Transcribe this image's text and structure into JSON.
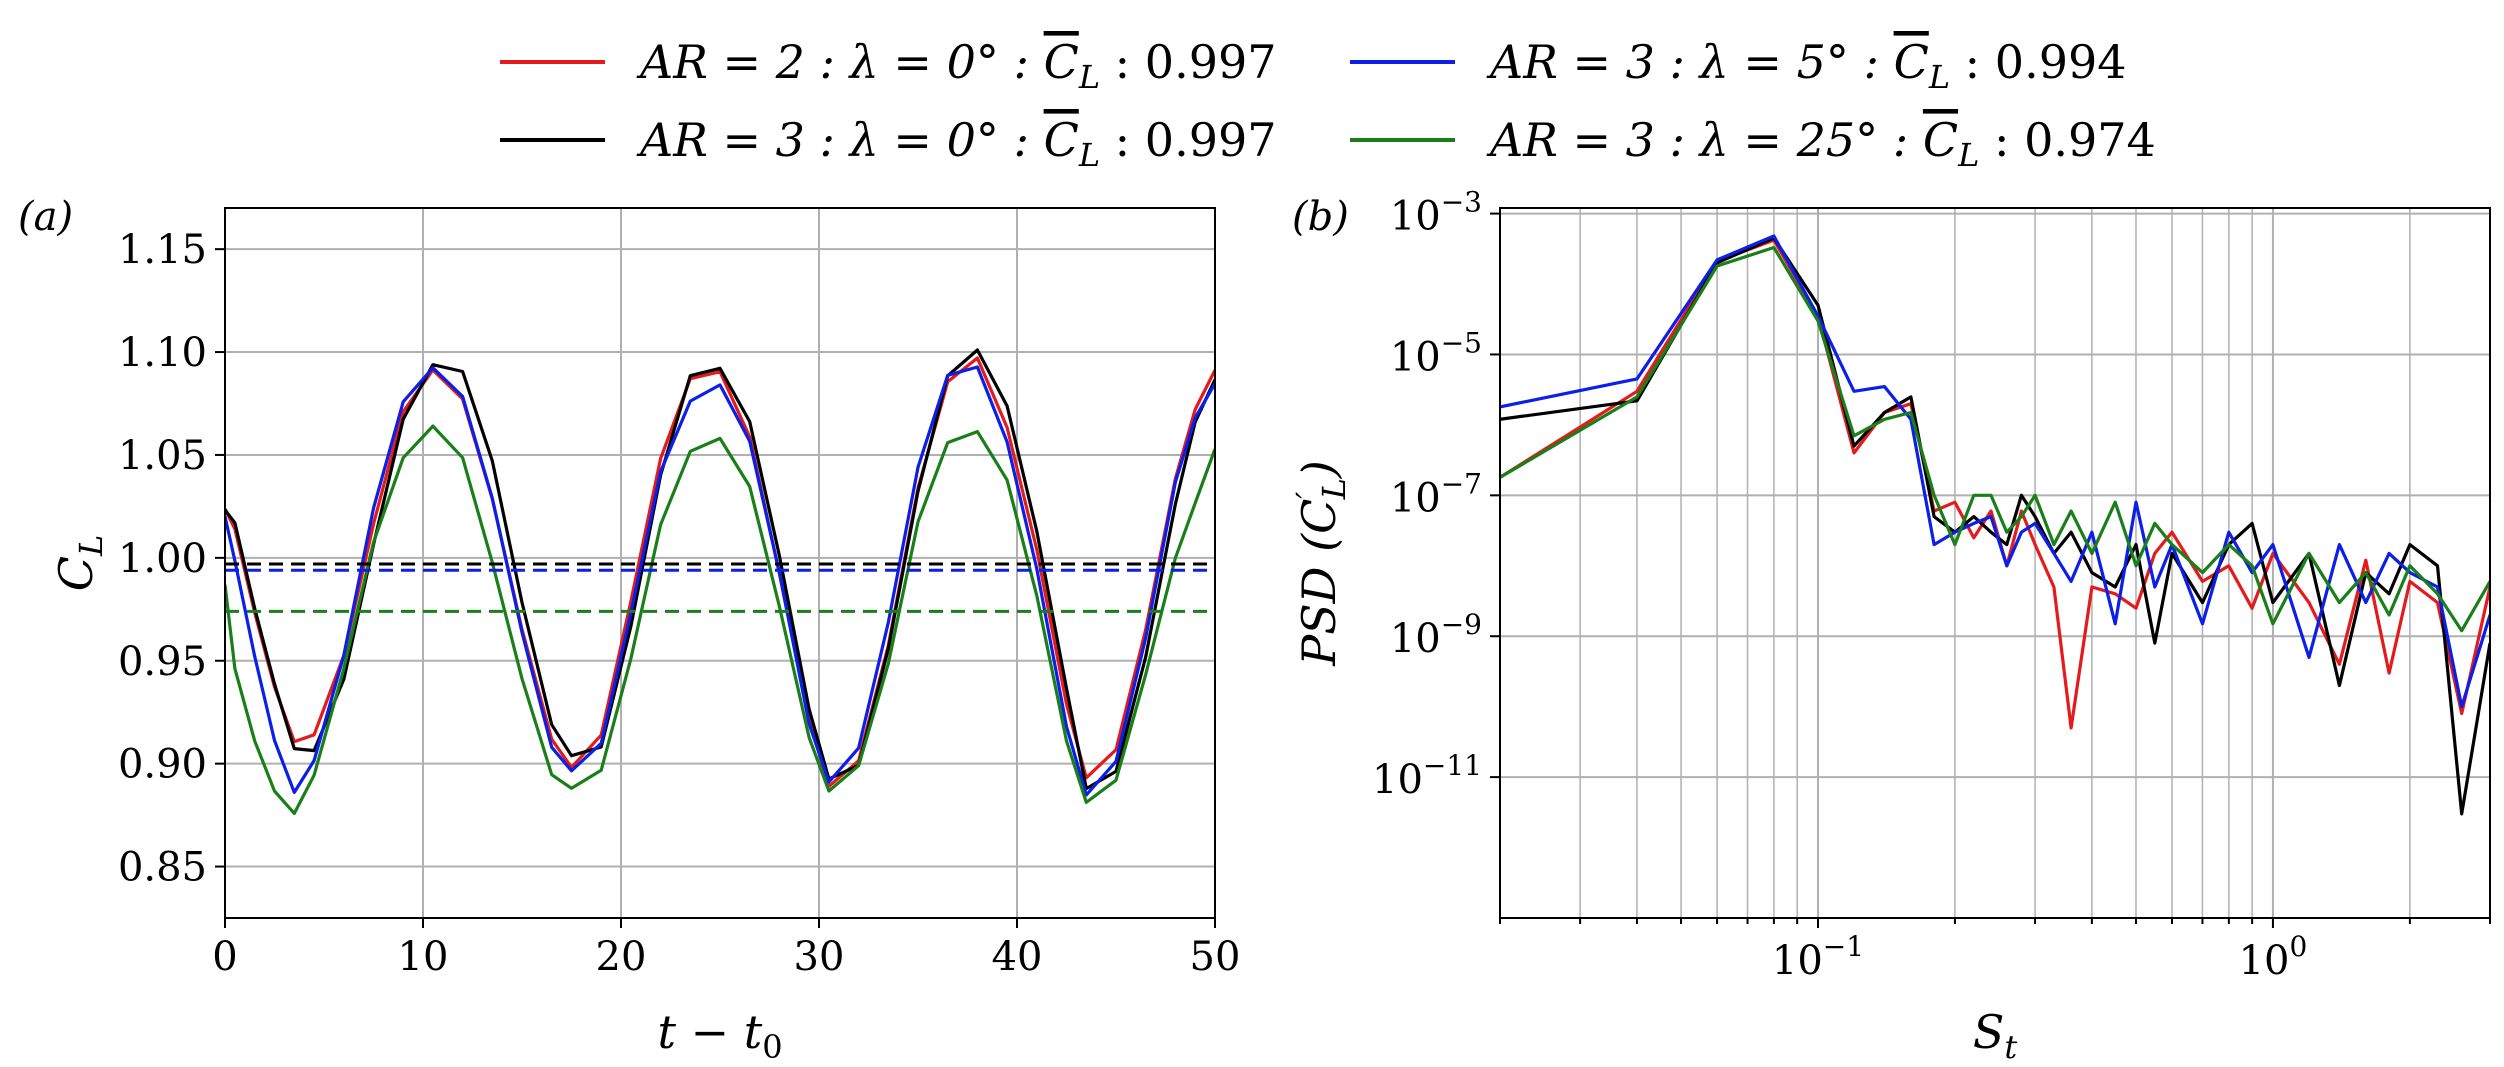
{
  "legend": {
    "placement": "top-center",
    "entries": [
      {
        "prefix": "AR = 2 : λ = 0° : ",
        "cl_symbol": "C",
        "cl_sub": "L",
        "suffix": " : 0.997",
        "color": "#e41a1c"
      },
      {
        "prefix": "AR = 3 : λ = 5° : ",
        "cl_symbol": "C",
        "cl_sub": "L",
        "suffix": " : 0.994",
        "color": "#0b1fe8"
      },
      {
        "prefix": "AR = 3 : λ = 0° : ",
        "cl_symbol": "C",
        "cl_sub": "L",
        "suffix": " : 0.997",
        "color": "#000000"
      },
      {
        "prefix": "AR = 3 : λ = 25° : ",
        "cl_symbol": "C",
        "cl_sub": "L",
        "suffix": " : 0.974",
        "color": "#1a7f1a"
      }
    ]
  },
  "panels": {
    "a": {
      "label": "(a)",
      "xlabel": "t − t",
      "xlabel_sub": "0",
      "ylabel": "C",
      "ylabel_sub": "L"
    },
    "b": {
      "label": "(b)",
      "xlabel": "S",
      "xlabel_sub": "t",
      "ylabel": "PSD (C",
      "ylabel_sup": "′",
      "ylabel_sub": "L",
      "ylabel_end": ")"
    }
  },
  "colors": {
    "red": "#e41a1c",
    "black": "#000000",
    "blue": "#0b1fe8",
    "green": "#1a7f1a",
    "grid": "#b0b0b0"
  },
  "chart_data": [
    {
      "type": "line",
      "panel": "a",
      "xlabel": "t − t0",
      "ylabel": "CL",
      "xlim": [
        0,
        50
      ],
      "ylim": [
        0.825,
        1.17
      ],
      "xticks": [
        0,
        10,
        20,
        30,
        40,
        50
      ],
      "xtick_labels": [
        "0",
        "10",
        "20",
        "30",
        "40",
        "50"
      ],
      "yticks": [
        0.85,
        0.9,
        0.95,
        1.0,
        1.05,
        1.1,
        1.15
      ],
      "ytick_labels": [
        "0.85",
        "0.90",
        "0.95",
        "1.00",
        "1.05",
        "1.10",
        "1.15"
      ],
      "grid": true,
      "series": [
        {
          "color": "#e41a1c",
          "mean": 0.997,
          "x": [
            0,
            0.5,
            1.5,
            2.5,
            3.5,
            4.5,
            6,
            7.5,
            9,
            10.5,
            12,
            13.5,
            15,
            16.5,
            17.5,
            19,
            20.5,
            22,
            23.5,
            25,
            26.5,
            28,
            29.5,
            30.5,
            32,
            33.5,
            35,
            36.5,
            38,
            39.5,
            41,
            42.5,
            43.5,
            45,
            46.5,
            48,
            49,
            50
          ],
          "y": [
            1.02,
            1.01,
            0.97,
            0.935,
            0.91,
            0.915,
            0.955,
            1.02,
            1.075,
            1.095,
            1.08,
            1.03,
            0.965,
            0.91,
            0.895,
            0.91,
            0.975,
            1.045,
            1.085,
            1.09,
            1.06,
            0.995,
            0.925,
            0.893,
            0.905,
            0.96,
            1.035,
            1.085,
            1.095,
            1.06,
            1.0,
            0.925,
            0.89,
            0.905,
            0.965,
            1.04,
            1.075,
            1.095
          ]
        },
        {
          "color": "#000000",
          "mean": 0.997,
          "x": [
            0,
            0.5,
            1.5,
            2.5,
            3.5,
            4.5,
            6,
            7.5,
            9,
            10.5,
            12,
            13.5,
            15,
            16.5,
            17.5,
            19,
            20.5,
            22,
            23.5,
            25,
            26.5,
            28,
            29.5,
            30.5,
            32,
            33.5,
            35,
            36.5,
            38,
            39.5,
            41,
            42.5,
            43.5,
            45,
            46.5,
            48,
            49,
            50
          ],
          "y": [
            1.02,
            1.015,
            0.975,
            0.94,
            0.91,
            0.91,
            0.945,
            1.01,
            1.07,
            1.095,
            1.09,
            1.045,
            0.975,
            0.915,
            0.9,
            0.905,
            0.965,
            1.04,
            1.09,
            1.095,
            1.07,
            1.005,
            0.93,
            0.895,
            0.9,
            0.955,
            1.03,
            1.085,
            1.097,
            1.07,
            1.01,
            0.935,
            0.888,
            0.898,
            0.955,
            1.03,
            1.07,
            1.09
          ]
        },
        {
          "color": "#0b1fe8",
          "mean": 0.994,
          "x": [
            0,
            0.5,
            1.5,
            2.5,
            3.5,
            4.5,
            6,
            7.5,
            9,
            10.5,
            12,
            13.5,
            15,
            16.5,
            17.5,
            19,
            20.5,
            22,
            23.5,
            25,
            26.5,
            28,
            29.5,
            30.5,
            32,
            33.5,
            35,
            36.5,
            38,
            39.5,
            41,
            42.5,
            43.5,
            45,
            46.5,
            48,
            49,
            50
          ],
          "y": [
            1.02,
            1.0,
            0.955,
            0.915,
            0.89,
            0.905,
            0.955,
            1.025,
            1.075,
            1.09,
            1.075,
            1.025,
            0.96,
            0.905,
            0.895,
            0.91,
            0.975,
            1.045,
            1.08,
            1.088,
            1.06,
            0.995,
            0.92,
            0.89,
            0.905,
            0.965,
            1.04,
            1.085,
            1.09,
            1.055,
            0.995,
            0.92,
            0.888,
            0.905,
            0.965,
            1.04,
            1.07,
            1.085
          ]
        },
        {
          "color": "#1a7f1a",
          "mean": 0.974,
          "x": [
            0,
            0.5,
            1.5,
            2.5,
            3.5,
            4.5,
            6,
            7.5,
            9,
            10.5,
            12,
            13.5,
            15,
            16.5,
            17.5,
            19,
            20.5,
            22,
            23.5,
            25,
            26.5,
            28,
            29.5,
            30.5,
            32,
            33.5,
            35,
            36.5,
            38,
            39.5,
            41,
            42.5,
            43.5,
            45,
            46.5,
            48,
            49,
            50
          ],
          "y": [
            0.99,
            0.95,
            0.915,
            0.89,
            0.878,
            0.895,
            0.945,
            1.005,
            1.045,
            1.06,
            1.045,
            0.995,
            0.94,
            0.895,
            0.89,
            0.9,
            0.955,
            1.02,
            1.055,
            1.06,
            1.035,
            0.975,
            0.91,
            0.883,
            0.895,
            0.945,
            1.015,
            1.055,
            1.062,
            1.04,
            0.985,
            0.915,
            0.885,
            0.895,
            0.945,
            1.0,
            1.025,
            1.05
          ]
        }
      ]
    },
    {
      "type": "line",
      "panel": "b",
      "xlabel": "St",
      "ylabel": "PSD (C'L)",
      "xscale": "log",
      "yscale": "log",
      "xlim": [
        0.02,
        3.0
      ],
      "ylim": [
        1e-13,
        0.0012
      ],
      "xticks": [
        0.1,
        1
      ],
      "xtick_labels": [
        "10",
        "10"
      ],
      "xtick_exponents": [
        "−1",
        "0"
      ],
      "yticks": [
        1e-11,
        1e-09,
        1e-07,
        1e-05,
        0.001
      ],
      "ytick_labels": [
        "10",
        "10",
        "10",
        "10",
        "10"
      ],
      "ytick_exponents": [
        "−11",
        "−9",
        "−7",
        "−5",
        "−3"
      ],
      "grid": true,
      "series": [
        {
          "color": "#e41a1c",
          "x": [
            0.02,
            0.04,
            0.06,
            0.08,
            0.1,
            0.12,
            0.14,
            0.16,
            0.18,
            0.2,
            0.22,
            0.24,
            0.26,
            0.28,
            0.3,
            0.33,
            0.36,
            0.4,
            0.45,
            0.5,
            0.55,
            0.6,
            0.7,
            0.8,
            0.9,
            1.0,
            1.2,
            1.4,
            1.6,
            1.8,
            2.0,
            2.3,
            2.6,
            3.0
          ],
          "y": [
            1.8e-07,
            3e-06,
            0.00021,
            0.00042,
            3.5e-05,
            4e-07,
            1.5e-06,
            2e-06,
            6e-08,
            8e-08,
            2.5e-08,
            6e-08,
            1e-08,
            6e-08,
            2e-08,
            5e-09,
            5e-11,
            5e-09,
            4e-09,
            2.5e-09,
            1.5e-08,
            3e-08,
            6e-09,
            1e-08,
            2.5e-09,
            1.5e-08,
            3e-09,
            4e-10,
            1.2e-08,
            3e-10,
            6e-09,
            3e-09,
            8e-11,
            5e-09
          ]
        },
        {
          "color": "#000000",
          "x": [
            0.02,
            0.04,
            0.06,
            0.08,
            0.1,
            0.12,
            0.14,
            0.16,
            0.18,
            0.2,
            0.22,
            0.24,
            0.26,
            0.28,
            0.3,
            0.33,
            0.36,
            0.4,
            0.45,
            0.5,
            0.55,
            0.6,
            0.7,
            0.8,
            0.9,
            1.0,
            1.2,
            1.4,
            1.6,
            1.8,
            2.0,
            2.3,
            2.6,
            3.0
          ],
          "y": [
            1.2e-06,
            2.2e-06,
            0.0002,
            0.00045,
            5e-05,
            5e-07,
            1.5e-06,
            2.5e-06,
            5e-08,
            3e-08,
            5e-08,
            3e-08,
            2e-08,
            1e-07,
            5e-08,
            1.5e-08,
            3e-08,
            8e-09,
            5e-09,
            2e-08,
            8e-10,
            1.5e-08,
            3e-09,
            2e-08,
            4e-08,
            3e-09,
            1.5e-08,
            2e-10,
            8e-09,
            4e-09,
            2e-08,
            1e-08,
            3e-12,
            8e-10
          ]
        },
        {
          "color": "#0b1fe8",
          "x": [
            0.02,
            0.04,
            0.06,
            0.08,
            0.1,
            0.12,
            0.14,
            0.16,
            0.18,
            0.2,
            0.22,
            0.24,
            0.26,
            0.28,
            0.3,
            0.33,
            0.36,
            0.4,
            0.45,
            0.5,
            0.55,
            0.6,
            0.7,
            0.8,
            0.9,
            1.0,
            1.2,
            1.4,
            1.6,
            1.8,
            2.0,
            2.3,
            2.6,
            3.0
          ],
          "y": [
            1.8e-06,
            4.5e-06,
            0.00022,
            0.00048,
            3.5e-05,
            3e-06,
            3.5e-06,
            1.2e-06,
            2e-08,
            3e-08,
            4e-08,
            5e-08,
            1e-08,
            3e-08,
            4e-08,
            1.5e-08,
            6e-09,
            3e-08,
            1.5e-09,
            8e-08,
            5e-09,
            2e-08,
            1.5e-09,
            3e-08,
            8e-09,
            2e-08,
            5e-10,
            2e-08,
            3e-09,
            1.5e-08,
            8e-09,
            5e-09,
            1e-10,
            2e-09
          ]
        },
        {
          "color": "#1a7f1a",
          "x": [
            0.02,
            0.04,
            0.06,
            0.08,
            0.1,
            0.12,
            0.14,
            0.16,
            0.18,
            0.2,
            0.22,
            0.24,
            0.26,
            0.28,
            0.3,
            0.33,
            0.36,
            0.4,
            0.45,
            0.5,
            0.55,
            0.6,
            0.7,
            0.8,
            0.9,
            1.0,
            1.2,
            1.4,
            1.6,
            1.8,
            2.0,
            2.3,
            2.6,
            3.0
          ],
          "y": [
            1.8e-07,
            2.5e-06,
            0.00018,
            0.00033,
            3e-05,
            7e-07,
            1.2e-06,
            1.5e-06,
            1e-07,
            2e-08,
            1e-07,
            1e-07,
            3e-08,
            5e-08,
            1e-07,
            2e-08,
            6e-08,
            1.5e-08,
            8e-08,
            1e-08,
            4e-08,
            2e-08,
            8e-09,
            2e-08,
            1e-08,
            1.5e-09,
            1.5e-08,
            3e-09,
            8e-09,
            2e-09,
            1e-08,
            4e-09,
            1.2e-09,
            6e-09
          ]
        }
      ]
    }
  ]
}
